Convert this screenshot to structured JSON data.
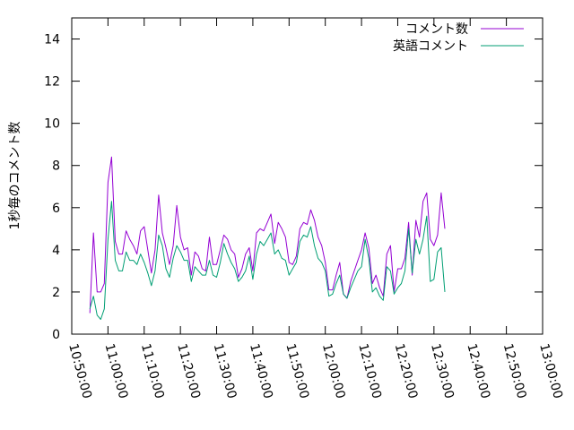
{
  "chart_data": {
    "type": "line",
    "title": "",
    "xlabel": "",
    "ylabel": "1秒毎のコメント数",
    "xlim": [
      "10:50:00",
      "13:00:00"
    ],
    "ylim": [
      0,
      15
    ],
    "x_ticks": [
      "10:50:00",
      "11:00:00",
      "11:10:00",
      "11:20:00",
      "11:30:00",
      "11:40:00",
      "11:50:00",
      "12:00:00",
      "12:10:00",
      "12:20:00",
      "12:30:00",
      "12:40:00",
      "12:50:00",
      "13:00:00"
    ],
    "y_ticks": [
      0,
      2,
      4,
      6,
      8,
      10,
      12,
      14
    ],
    "grid": false,
    "legend_position": "top-right",
    "x_start": "10:55:00",
    "x_step_seconds": 60,
    "series": [
      {
        "name": "コメント数",
        "color": "#9400d3",
        "values": [
          1.0,
          4.8,
          2.0,
          2.0,
          2.4,
          7.2,
          8.4,
          4.4,
          3.8,
          3.8,
          4.9,
          4.5,
          4.2,
          3.8,
          4.9,
          5.1,
          4.0,
          2.9,
          4.0,
          6.6,
          4.8,
          4.1,
          3.3,
          4.2,
          6.1,
          4.6,
          4.0,
          4.1,
          2.8,
          3.9,
          3.7,
          3.1,
          3.0,
          4.6,
          3.3,
          3.3,
          4.0,
          4.7,
          4.5,
          4.0,
          3.8,
          2.7,
          3.1,
          3.8,
          4.1,
          3.0,
          4.8,
          5.0,
          4.9,
          5.3,
          5.7,
          4.3,
          5.3,
          5.0,
          4.6,
          3.4,
          3.3,
          3.7,
          5.0,
          5.3,
          5.2,
          5.9,
          5.4,
          4.6,
          4.2,
          3.4,
          2.1,
          2.1,
          2.8,
          3.4,
          1.9,
          1.7,
          2.5,
          3.0,
          3.5,
          4.0,
          4.8,
          4.1,
          2.4,
          2.8,
          2.2,
          1.8,
          3.8,
          4.2,
          2.0,
          3.1,
          3.1,
          3.6,
          5.3,
          2.8,
          5.4,
          4.6,
          6.3,
          6.7,
          4.5,
          4.2,
          4.7,
          6.7,
          5.0
        ]
      },
      {
        "name": "英語コメント",
        "color": "#009e73",
        "values": [
          1.2,
          1.8,
          0.9,
          0.7,
          1.2,
          4.5,
          6.3,
          3.5,
          3.0,
          3.0,
          3.9,
          3.5,
          3.5,
          3.3,
          3.8,
          3.4,
          2.9,
          2.3,
          3.0,
          4.7,
          4.2,
          3.1,
          2.7,
          3.6,
          4.2,
          3.9,
          3.5,
          3.5,
          2.5,
          3.2,
          3.0,
          2.8,
          2.8,
          3.5,
          2.8,
          2.7,
          3.4,
          4.3,
          3.8,
          3.4,
          3.1,
          2.5,
          2.7,
          3.0,
          3.7,
          2.6,
          3.8,
          4.4,
          4.2,
          4.5,
          4.8,
          3.8,
          4.0,
          3.6,
          3.5,
          2.8,
          3.1,
          3.4,
          4.4,
          4.7,
          4.6,
          5.1,
          4.2,
          3.6,
          3.4,
          3.0,
          1.8,
          1.9,
          2.4,
          2.8,
          1.9,
          1.7,
          2.2,
          2.6,
          3.0,
          3.2,
          4.5,
          3.6,
          2.0,
          2.2,
          1.8,
          1.6,
          3.2,
          3.0,
          1.9,
          2.2,
          2.4,
          3.0,
          5.0,
          2.9,
          4.5,
          3.8,
          4.5,
          5.6,
          2.5,
          2.6,
          3.9,
          4.1,
          2.0
        ]
      }
    ]
  }
}
